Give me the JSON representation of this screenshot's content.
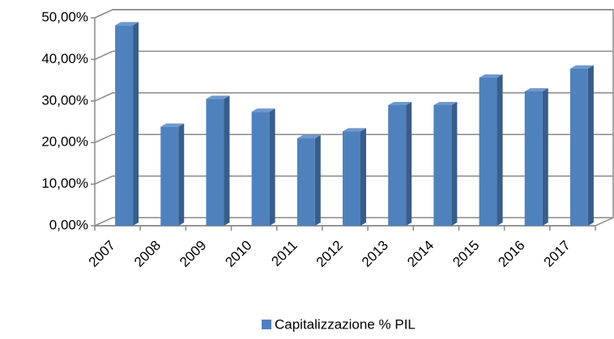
{
  "chart_data": {
    "type": "bar",
    "categories": [
      "2007",
      "2008",
      "2009",
      "2010",
      "2011",
      "2012",
      "2013",
      "2014",
      "2015",
      "2016",
      "2017"
    ],
    "series": [
      {
        "name": "Capitalizzazione % PIL",
        "color": "#4f81bd",
        "values": [
          48.2,
          23.8,
          30.5,
          27.4,
          21,
          22.7,
          29,
          29,
          35.6,
          32.3,
          37.8
        ]
      }
    ],
    "ylim": [
      0,
      50
    ],
    "yticks": [
      {
        "value": 0,
        "label": "0,00%"
      },
      {
        "value": 10,
        "label": "10,00%"
      },
      {
        "value": 20,
        "label": "20,00%"
      },
      {
        "value": 30,
        "label": "30,00%"
      },
      {
        "value": 40,
        "label": "40,00%"
      },
      {
        "value": 50,
        "label": "50,00%"
      }
    ],
    "grid": true,
    "legend": "bottom"
  }
}
